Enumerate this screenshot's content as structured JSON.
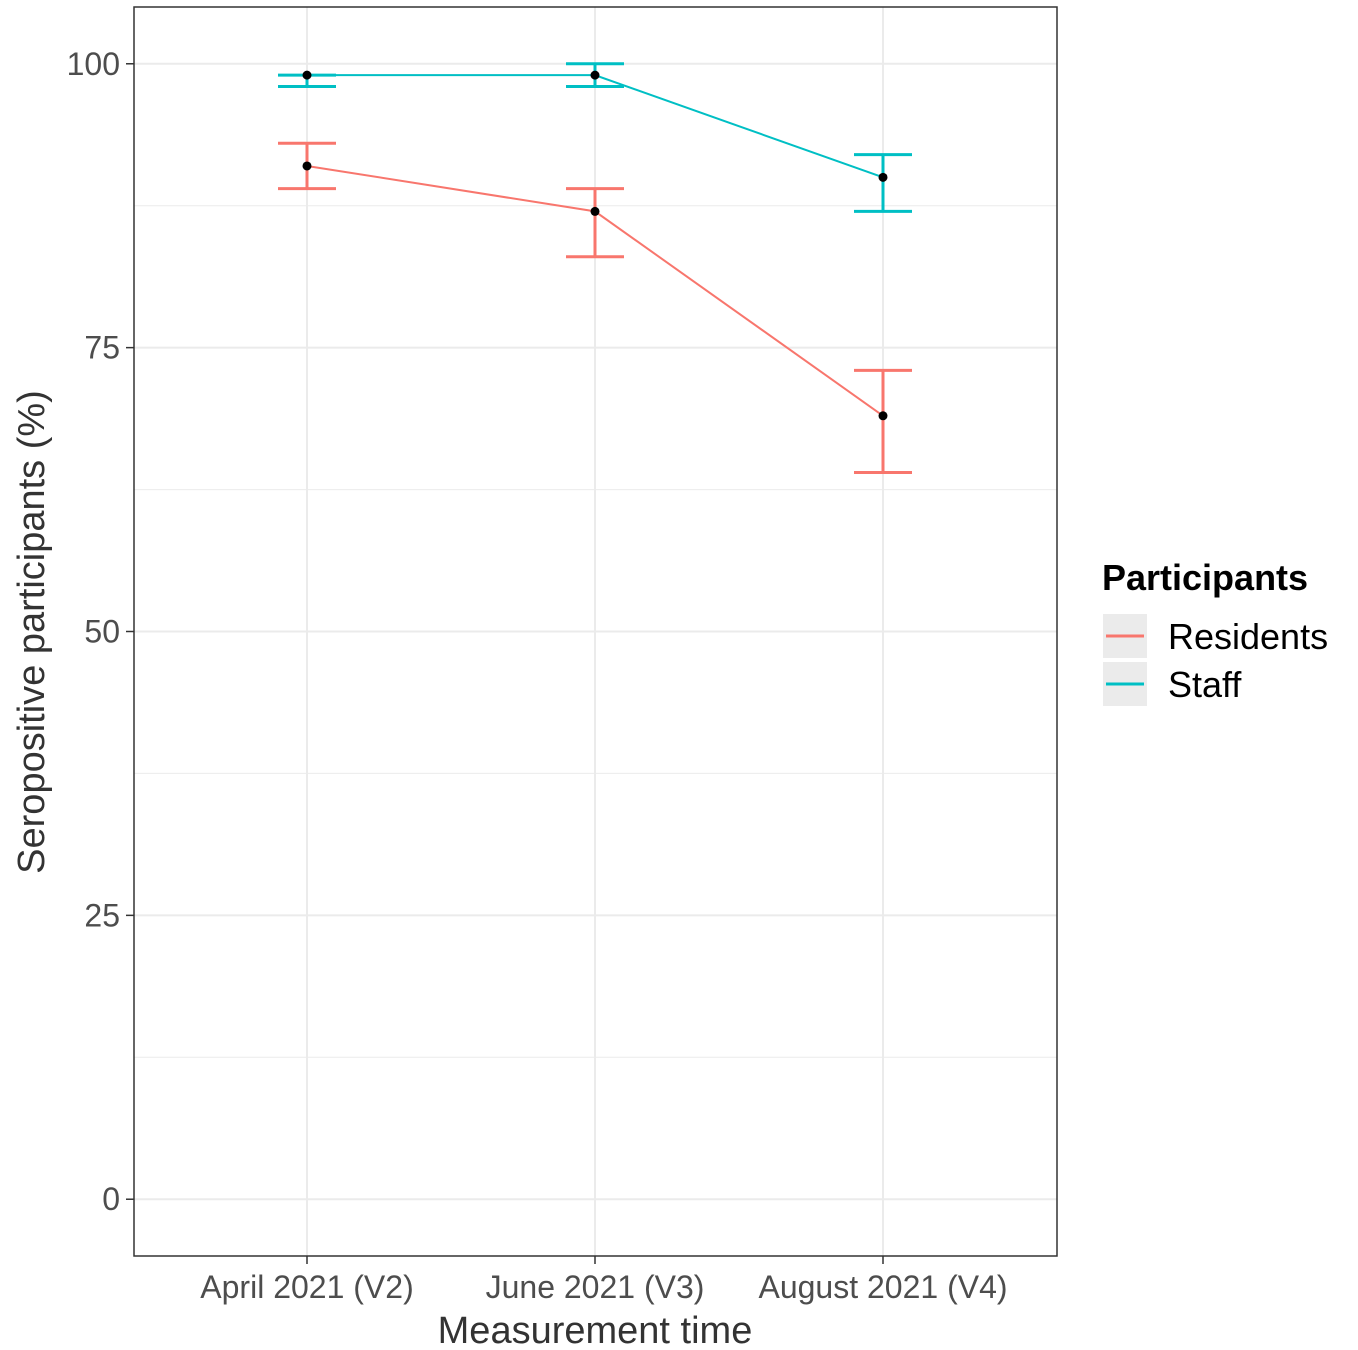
{
  "chart_data": {
    "type": "line",
    "categories": [
      "April 2021 (V2)",
      "June 2021 (V3)",
      "August 2021 (V4)"
    ],
    "xlabel": "Measurement time",
    "ylabel": "Seropositive participants (%)",
    "ylim": [
      -5,
      105
    ],
    "yticks": [
      "0",
      "25",
      "50",
      "75",
      "100"
    ],
    "grid": true,
    "legend": {
      "title": "Participants",
      "position": "right"
    },
    "series": [
      {
        "name": "Residents",
        "color": "#F8766D",
        "values": [
          91,
          87,
          69
        ],
        "lower": [
          89,
          83,
          64
        ],
        "upper": [
          93,
          89,
          73
        ]
      },
      {
        "name": "Staff",
        "color": "#00BFC4",
        "values": [
          99,
          99,
          90
        ],
        "lower": [
          98,
          98,
          87
        ],
        "upper": [
          99,
          100,
          92
        ]
      }
    ],
    "point_color": "#000000"
  }
}
